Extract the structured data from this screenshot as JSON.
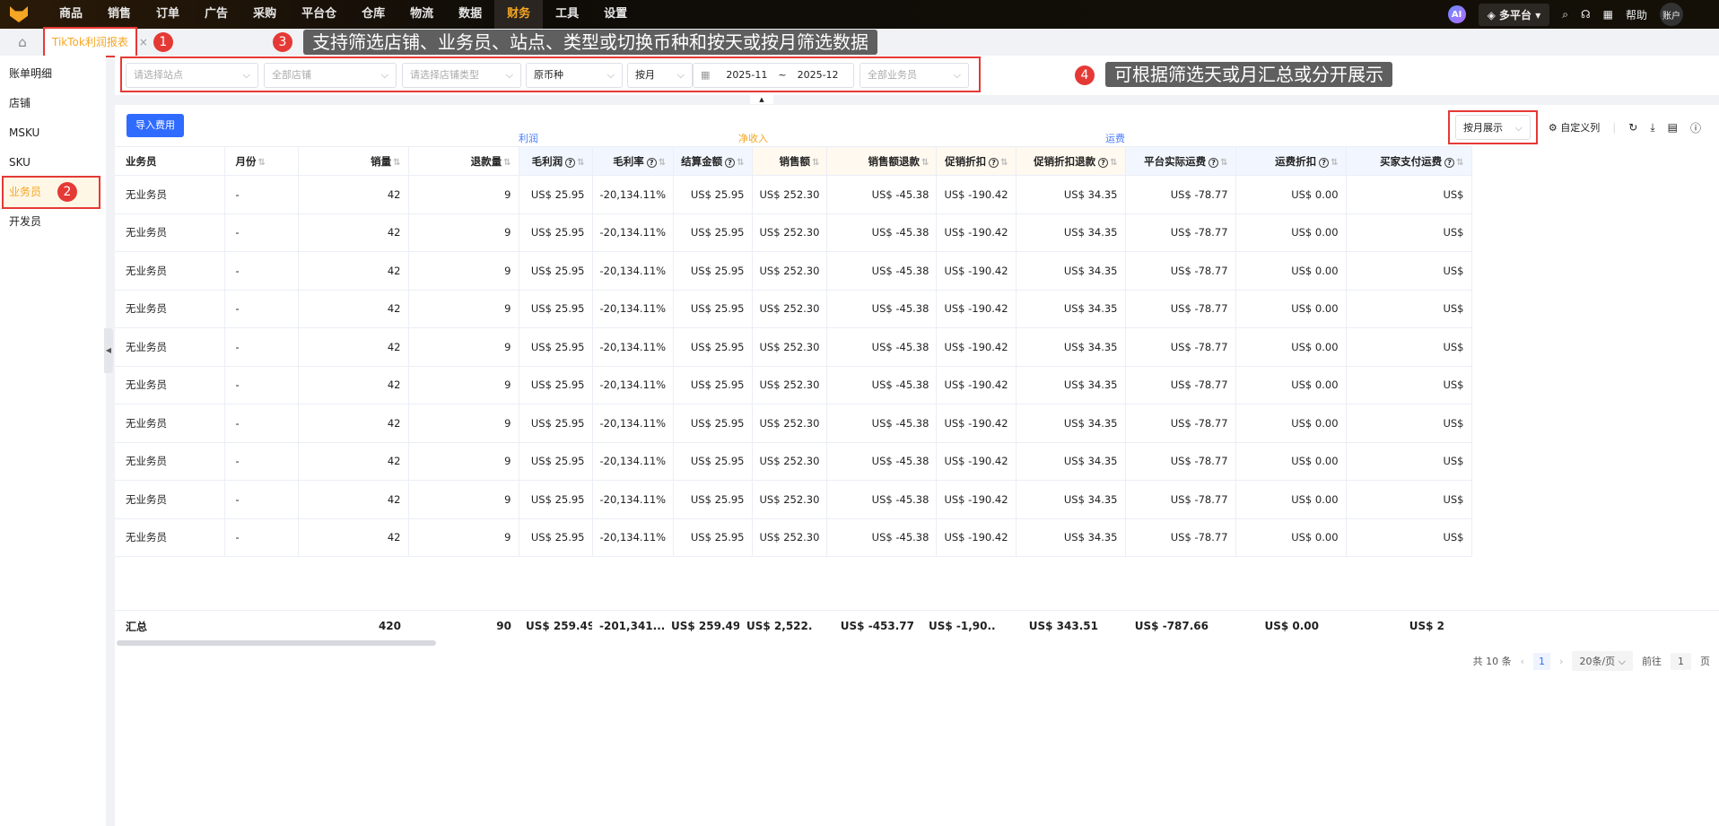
{
  "nav": [
    "商品",
    "销售",
    "订单",
    "广告",
    "采购",
    "平台仓",
    "仓库",
    "物流",
    "数据",
    "财务",
    "工具",
    "设置"
  ],
  "nav_active": "财务",
  "top_right": {
    "ai": "AI",
    "platform": "多平台",
    "help": "帮助",
    "account": "账户"
  },
  "tab": "TikTok利润报表",
  "annotations": {
    "b1": "1",
    "b2": "2",
    "b3": "3",
    "b4": "4",
    "tip3": "支持筛选店铺、业务员、站点、类型或切换币种和按天或按月筛选数据",
    "tip4": "可根据筛选天或月汇总或分开展示"
  },
  "sidebar": [
    "账单明细",
    "店铺",
    "MSKU",
    "SKU",
    "业务员",
    "开发员"
  ],
  "sidebar_active": "业务员",
  "filters": {
    "site": "请选择站点",
    "store": "全部店铺",
    "store_type": "请选择店铺类型",
    "currency": "原币种",
    "period": "按月",
    "date_start": "2025-11",
    "date_sep": "~",
    "date_end": "2025-12",
    "salesman": "全部业务员"
  },
  "toolbar": {
    "import": "导入费用",
    "display": "按月展示",
    "custom_cols": "自定义列"
  },
  "groups": {
    "profit": "利润",
    "net_income": "净收入",
    "shipping": "运费"
  },
  "columns": [
    "业务员",
    "月份",
    "销量",
    "退款量",
    "毛利润",
    "毛利率",
    "结算金额",
    "销售额",
    "销售额退款",
    "促销折扣",
    "促销折扣退款",
    "平台实际运费",
    "运费折扣",
    "买家支付运费"
  ],
  "rows": [
    [
      "无业务员",
      "-",
      "42",
      "9",
      "US$ 25.95",
      "-20,134.11%",
      "US$ 25.95",
      "US$ 252.30",
      "US$ -45.38",
      "US$ -190.42",
      "US$ 34.35",
      "US$ -78.77",
      "US$ 0.00",
      "US$"
    ],
    [
      "无业务员",
      "-",
      "42",
      "9",
      "US$ 25.95",
      "-20,134.11%",
      "US$ 25.95",
      "US$ 252.30",
      "US$ -45.38",
      "US$ -190.42",
      "US$ 34.35",
      "US$ -78.77",
      "US$ 0.00",
      "US$"
    ],
    [
      "无业务员",
      "-",
      "42",
      "9",
      "US$ 25.95",
      "-20,134.11%",
      "US$ 25.95",
      "US$ 252.30",
      "US$ -45.38",
      "US$ -190.42",
      "US$ 34.35",
      "US$ -78.77",
      "US$ 0.00",
      "US$"
    ],
    [
      "无业务员",
      "-",
      "42",
      "9",
      "US$ 25.95",
      "-20,134.11%",
      "US$ 25.95",
      "US$ 252.30",
      "US$ -45.38",
      "US$ -190.42",
      "US$ 34.35",
      "US$ -78.77",
      "US$ 0.00",
      "US$"
    ],
    [
      "无业务员",
      "-",
      "42",
      "9",
      "US$ 25.95",
      "-20,134.11%",
      "US$ 25.95",
      "US$ 252.30",
      "US$ -45.38",
      "US$ -190.42",
      "US$ 34.35",
      "US$ -78.77",
      "US$ 0.00",
      "US$"
    ],
    [
      "无业务员",
      "-",
      "42",
      "9",
      "US$ 25.95",
      "-20,134.11%",
      "US$ 25.95",
      "US$ 252.30",
      "US$ -45.38",
      "US$ -190.42",
      "US$ 34.35",
      "US$ -78.77",
      "US$ 0.00",
      "US$"
    ],
    [
      "无业务员",
      "-",
      "42",
      "9",
      "US$ 25.95",
      "-20,134.11%",
      "US$ 25.95",
      "US$ 252.30",
      "US$ -45.38",
      "US$ -190.42",
      "US$ 34.35",
      "US$ -78.77",
      "US$ 0.00",
      "US$"
    ],
    [
      "无业务员",
      "-",
      "42",
      "9",
      "US$ 25.95",
      "-20,134.11%",
      "US$ 25.95",
      "US$ 252.30",
      "US$ -45.38",
      "US$ -190.42",
      "US$ 34.35",
      "US$ -78.77",
      "US$ 0.00",
      "US$"
    ],
    [
      "无业务员",
      "-",
      "42",
      "9",
      "US$ 25.95",
      "-20,134.11%",
      "US$ 25.95",
      "US$ 252.30",
      "US$ -45.38",
      "US$ -190.42",
      "US$ 34.35",
      "US$ -78.77",
      "US$ 0.00",
      "US$"
    ],
    [
      "无业务员",
      "-",
      "42",
      "9",
      "US$ 25.95",
      "-20,134.11%",
      "US$ 25.95",
      "US$ 252.30",
      "US$ -45.38",
      "US$ -190.42",
      "US$ 34.35",
      "US$ -78.77",
      "US$ 0.00",
      "US$"
    ]
  ],
  "total": [
    "汇总",
    "",
    "420",
    "90",
    "US$ 259.49",
    "-201,341....",
    "US$ 259.49",
    "US$ 2,522...",
    "US$ -453.77",
    "US$ -1,90...",
    "US$ 343.51",
    "US$ -787.66",
    "US$ 0.00",
    "US$ 2"
  ],
  "pagination": {
    "total": "共 10 条",
    "page": "1",
    "size": "20条/页",
    "goto": "前往",
    "goto_val": "1",
    "page_unit": "页"
  }
}
